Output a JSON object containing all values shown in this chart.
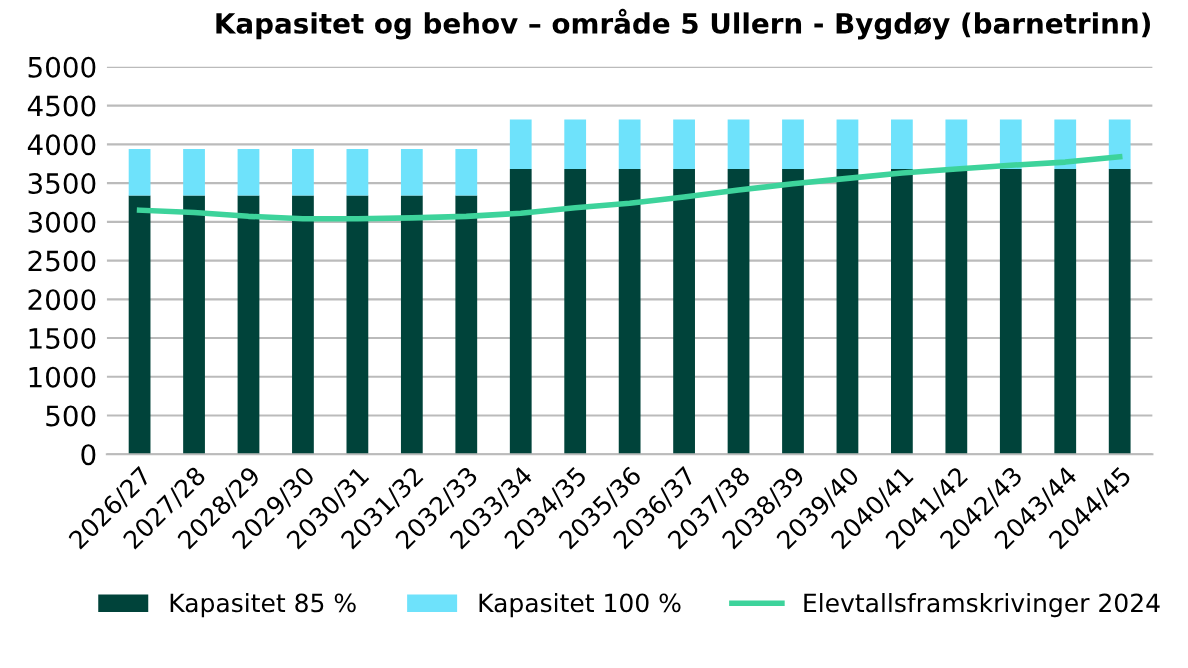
{
  "chart_data": {
    "type": "bar",
    "title": "Kapasitet og behov – område 5 Ullern - Bygdøy (barnetrinn)",
    "categories": [
      "2026/27",
      "2027/28",
      "2028/29",
      "2029/30",
      "2030/31",
      "2031/32",
      "2032/33",
      "2033/34",
      "2034/35",
      "2035/36",
      "2036/37",
      "2037/38",
      "2038/39",
      "2039/40",
      "2040/41",
      "2041/42",
      "2042/43",
      "2043/44",
      "2044/45"
    ],
    "stacked": true,
    "series": [
      {
        "name": "Kapasitet 85 %",
        "color": "#00433a",
        "values": [
          3340,
          3340,
          3340,
          3340,
          3340,
          3340,
          3340,
          3680,
          3680,
          3680,
          3680,
          3680,
          3680,
          3680,
          3680,
          3680,
          3680,
          3680,
          3680
        ]
      },
      {
        "name": "Kapasitet 100 %",
        "color": "#6ee2fb",
        "values": [
          600,
          600,
          600,
          600,
          600,
          600,
          600,
          640,
          640,
          640,
          640,
          640,
          640,
          640,
          640,
          640,
          640,
          640,
          640
        ]
      },
      {
        "name": "Elevtallsframskrivinger 2024",
        "type": "line",
        "color": "#3dd39b",
        "values": [
          3150,
          3120,
          3070,
          3040,
          3040,
          3050,
          3070,
          3110,
          3180,
          3240,
          3320,
          3410,
          3490,
          3560,
          3630,
          3680,
          3730,
          3770,
          3840
        ]
      }
    ],
    "ylim": [
      0,
      5000
    ],
    "yticks": [
      0,
      500,
      1000,
      1500,
      2000,
      2500,
      3000,
      3500,
      4000,
      4500,
      5000
    ],
    "grid": "y",
    "legend": "bottom",
    "marker": "none",
    "line_style": "solid"
  }
}
